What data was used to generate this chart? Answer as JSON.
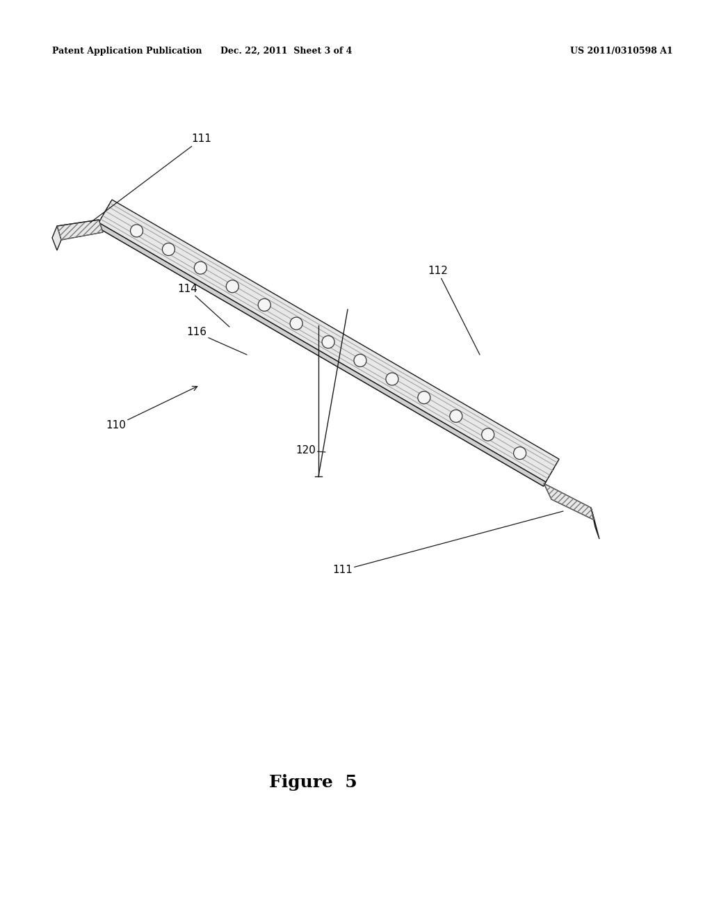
{
  "bg_color": "#ffffff",
  "header_left": "Patent Application Publication",
  "header_mid": "Dec. 22, 2011  Sheet 3 of 4",
  "header_right": "US 2011/0310598 A1",
  "figure_label": "Figure  5",
  "color_main": "#1a1a1a",
  "color_face_light": "#e8e8e8",
  "color_face_mid": "#d0d0d0",
  "color_face_dark": "#b8b8b8",
  "color_hatch": "#555555",
  "color_led_fill": "#f5f5f5",
  "color_led_edge": "#333333",
  "lw_main": 1.0,
  "n_leds": 13,
  "header_fontsize": 9.0,
  "label_fontsize": 11,
  "figure_fontsize": 18
}
